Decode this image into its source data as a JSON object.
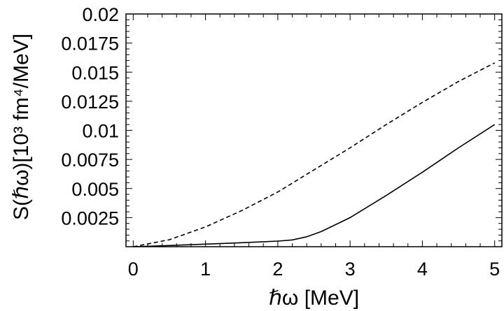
{
  "chart_data": {
    "type": "line",
    "xlabel": "ℏω [MeV]",
    "ylabel": "S(ℏω)[10³ fm⁴/MeV]",
    "xlim": [
      -0.1,
      5.1
    ],
    "ylim": [
      0,
      0.02
    ],
    "x_ticks": [
      "0",
      "1",
      "2",
      "3",
      "4",
      "5"
    ],
    "y_ticks": [
      "0.0025",
      "0.005",
      "0.0075",
      "0.01",
      "0.0125",
      "0.015",
      "0.0175",
      "0.02"
    ],
    "grid": false,
    "legend": "none",
    "series": [
      {
        "style": "solid",
        "x": [
          0,
          0.5,
          1.0,
          1.5,
          2.0,
          2.2,
          2.4,
          2.6,
          2.8,
          3.0,
          3.5,
          4.0,
          4.5,
          5.0
        ],
        "y": [
          0.0,
          0.0001,
          0.00022,
          0.00034,
          0.00048,
          0.00058,
          0.00085,
          0.0013,
          0.0019,
          0.0025,
          0.0044,
          0.0064,
          0.0085,
          0.0105
        ]
      },
      {
        "style": "dashed",
        "x": [
          0,
          0.5,
          1.0,
          1.5,
          2.0,
          2.5,
          3.0,
          3.5,
          4.0,
          4.5,
          5.0
        ],
        "y": [
          0.0,
          0.0006,
          0.0017,
          0.0031,
          0.0047,
          0.0066,
          0.0085,
          0.0105,
          0.0124,
          0.0142,
          0.0158
        ]
      }
    ]
  }
}
